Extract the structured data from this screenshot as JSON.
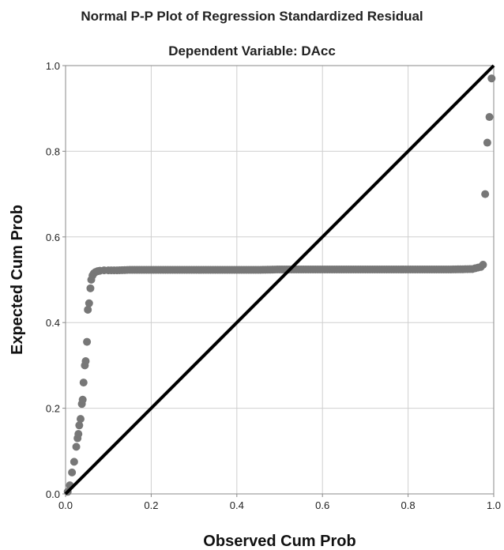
{
  "chart_data": {
    "type": "scatter",
    "title": "Normal P-P Plot of Regression Standardized Residual",
    "subtitle": "Dependent Variable: DAcc",
    "xlabel": "Observed Cum Prob",
    "ylabel": "Expected Cum Prob",
    "xlim": [
      0,
      1
    ],
    "ylim": [
      0,
      1
    ],
    "x_ticks": [
      "0.0",
      "0.2",
      "0.4",
      "0.6",
      "0.8",
      "1.0"
    ],
    "y_ticks": [
      "0.0",
      "0.2",
      "0.4",
      "0.6",
      "0.8",
      "1.0"
    ],
    "grid": true,
    "reference_line": {
      "from": [
        0,
        0
      ],
      "to": [
        1,
        1
      ],
      "color": "#000000"
    },
    "point_color": "#777777",
    "series": [
      {
        "x": [
          0.005,
          0.01,
          0.015,
          0.02,
          0.025,
          0.028,
          0.03,
          0.032,
          0.035,
          0.038,
          0.04,
          0.042,
          0.045,
          0.047,
          0.05,
          0.052,
          0.055,
          0.058,
          0.06,
          0.063,
          0.066,
          0.07,
          0.075,
          0.08,
          0.09,
          0.1,
          0.12,
          0.15,
          0.2,
          0.25,
          0.3,
          0.35,
          0.4,
          0.45,
          0.5,
          0.55,
          0.6,
          0.65,
          0.7,
          0.75,
          0.8,
          0.85,
          0.9,
          0.95,
          0.97,
          0.975,
          0.98,
          0.985,
          0.99,
          0.995
        ],
        "y": [
          0.005,
          0.02,
          0.05,
          0.075,
          0.11,
          0.13,
          0.14,
          0.16,
          0.175,
          0.21,
          0.22,
          0.26,
          0.3,
          0.31,
          0.355,
          0.43,
          0.445,
          0.48,
          0.5,
          0.51,
          0.515,
          0.518,
          0.52,
          0.521,
          0.522,
          0.522,
          0.522,
          0.523,
          0.523,
          0.523,
          0.523,
          0.523,
          0.523,
          0.523,
          0.524,
          0.524,
          0.524,
          0.524,
          0.524,
          0.524,
          0.524,
          0.524,
          0.524,
          0.525,
          0.53,
          0.535,
          0.7,
          0.82,
          0.88,
          0.97
        ]
      }
    ]
  }
}
